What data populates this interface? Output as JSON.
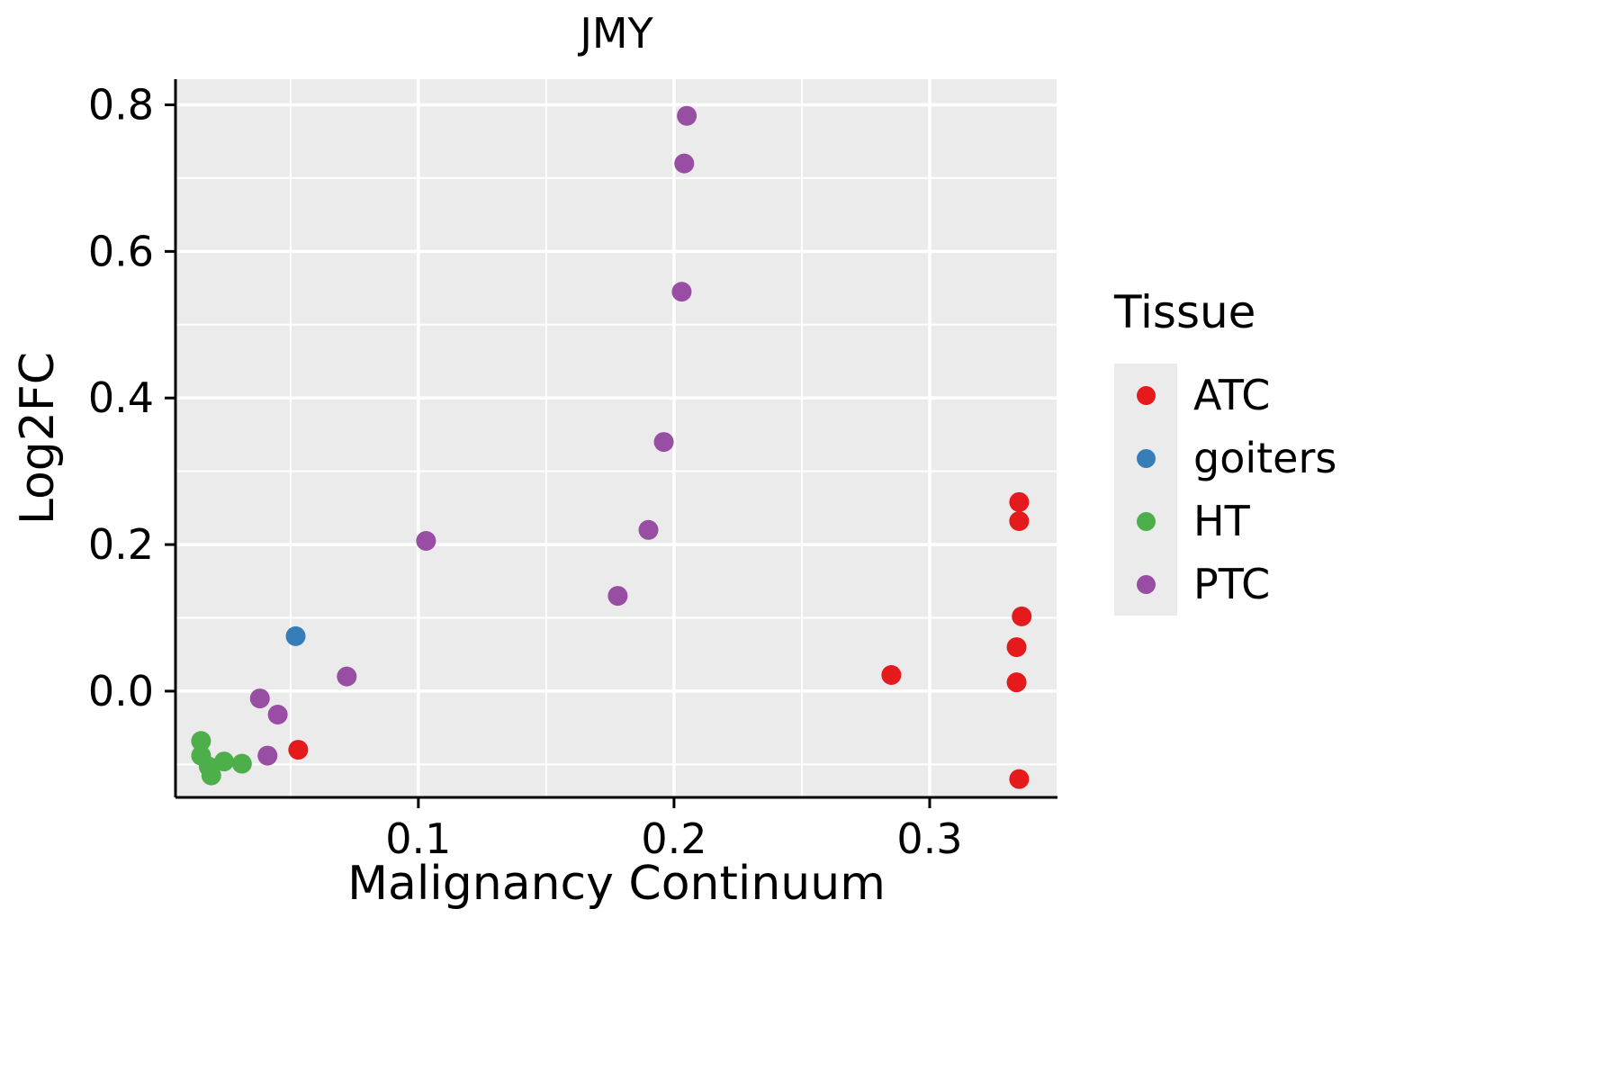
{
  "title": "JMY",
  "axes": {
    "x_label": "Malignancy Continuum",
    "y_label": "Log2FC",
    "x_ticks": [
      "0.1",
      "0.2",
      "0.3"
    ],
    "y_ticks": [
      "0.0",
      "0.2",
      "0.4",
      "0.6",
      "0.8"
    ]
  },
  "legend": {
    "title": "Tissue",
    "entries": [
      {
        "label": "ATC",
        "color": "#E41A1C"
      },
      {
        "label": "goiters",
        "color": "#377EB8"
      },
      {
        "label": "HT",
        "color": "#4DAF4A"
      },
      {
        "label": "PTC",
        "color": "#984EA3"
      }
    ]
  },
  "colors": {
    "panel_bg": "#EBEBEB",
    "grid": "#FFFFFF",
    "axis": "#000000",
    "text": "#000000",
    "legend_key_bg": "#EBEBEB"
  },
  "chart_data": {
    "type": "scatter",
    "title": "JMY",
    "xlabel": "Malignancy Continuum",
    "ylabel": "Log2FC",
    "xlim": [
      0.005,
      0.35
    ],
    "ylim": [
      -0.145,
      0.835
    ],
    "x_major_ticks": [
      0.1,
      0.2,
      0.3
    ],
    "y_major_ticks": [
      0.0,
      0.2,
      0.4,
      0.6,
      0.8
    ],
    "x_minor_ticks": [
      0.05,
      0.15,
      0.25,
      0.35
    ],
    "y_minor_ticks": [
      -0.1,
      0.1,
      0.3,
      0.5,
      0.7
    ],
    "grid": true,
    "legend_position": "right",
    "series": [
      {
        "name": "ATC",
        "color": "#E41A1C",
        "points": [
          [
            0.053,
            -0.08
          ],
          [
            0.285,
            0.022
          ],
          [
            0.335,
            0.258
          ],
          [
            0.335,
            0.232
          ],
          [
            0.336,
            0.102
          ],
          [
            0.334,
            0.06
          ],
          [
            0.334,
            0.012
          ],
          [
            0.335,
            -0.12
          ]
        ]
      },
      {
        "name": "goiters",
        "color": "#377EB8",
        "points": [
          [
            0.052,
            0.075
          ]
        ]
      },
      {
        "name": "HT",
        "color": "#4DAF4A",
        "points": [
          [
            0.015,
            -0.068
          ],
          [
            0.015,
            -0.088
          ],
          [
            0.018,
            -0.103
          ],
          [
            0.024,
            -0.096
          ],
          [
            0.019,
            -0.115
          ],
          [
            0.031,
            -0.099
          ]
        ]
      },
      {
        "name": "PTC",
        "color": "#984EA3",
        "points": [
          [
            0.038,
            -0.01
          ],
          [
            0.045,
            -0.032
          ],
          [
            0.041,
            -0.088
          ],
          [
            0.072,
            0.02
          ],
          [
            0.103,
            0.205
          ],
          [
            0.178,
            0.13
          ],
          [
            0.19,
            0.22
          ],
          [
            0.196,
            0.34
          ],
          [
            0.203,
            0.545
          ],
          [
            0.204,
            0.72
          ],
          [
            0.205,
            0.785
          ]
        ]
      }
    ]
  }
}
